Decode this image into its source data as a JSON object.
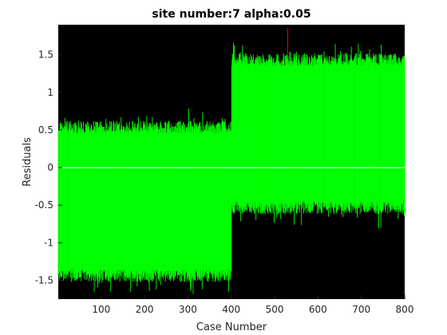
{
  "chart_data": {
    "type": "bar",
    "title": "site number:7 alpha:0.05",
    "xlabel": "Case Number",
    "ylabel": "Residuals",
    "xlim": [
      1,
      800
    ],
    "ylim": [
      -1.75,
      1.9
    ],
    "xticks": [
      100,
      200,
      300,
      400,
      500,
      600,
      700,
      800
    ],
    "yticks": [
      -1.5,
      -1,
      -0.5,
      0,
      0.5,
      1,
      1.5
    ],
    "xtick_labels": [
      "100",
      "200",
      "300",
      "400",
      "500",
      "600",
      "700",
      "800"
    ],
    "ytick_labels": [
      "-1.5",
      "-1",
      "-0.5",
      "0",
      "0.5",
      "1",
      "1.5"
    ],
    "reference_line_y": 0,
    "n_cases": 800,
    "segments": [
      {
        "from_case": 1,
        "to_case": 400,
        "center": -0.43,
        "lower": -1.52,
        "upper": 0.62,
        "noise": 0.12
      },
      {
        "from_case": 401,
        "to_case": 800,
        "center": 0.43,
        "lower": -0.62,
        "upper": 1.52,
        "noise": 0.12
      }
    ],
    "outlier_case": 530,
    "outlier_upper": 1.85,
    "colors": {
      "plot_background": "#000000",
      "interval": "#00ff00",
      "outlier": "#ff0000",
      "zero_line": "#ffffff"
    }
  }
}
